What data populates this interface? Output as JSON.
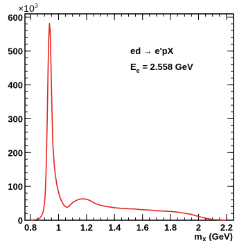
{
  "chart_data": {
    "type": "line",
    "title": "",
    "xlabel": "m",
    "xlabel_sub": "X",
    "xlabel_unit": " (GeV)",
    "ylabel": "",
    "y_multiplier": "×10",
    "y_multiplier_exp": "3",
    "xlim": [
      0.76,
      2.25
    ],
    "ylim": [
      0,
      610
    ],
    "x_ticks": [
      0.8,
      1.0,
      1.2,
      1.4,
      1.6,
      1.8,
      2.0,
      2.2
    ],
    "x_tick_labels": [
      "0.8",
      "1",
      "1.2",
      "1.4",
      "1.6",
      "1.8",
      "2",
      "2.2"
    ],
    "y_ticks": [
      0,
      100,
      200,
      300,
      400,
      500,
      600
    ],
    "y_tick_labels": [
      "0",
      "100",
      "200",
      "300",
      "400",
      "500",
      "600"
    ],
    "annotations": {
      "reaction_main": "ed",
      "reaction_arrow": "→",
      "reaction_tail": "e'pX",
      "energy_symbol": "E",
      "energy_sub": "e",
      "energy_value": "= 2.558 GeV"
    },
    "series": [
      {
        "color": "#e8231e",
        "x": [
          0.8,
          0.82,
          0.84,
          0.86,
          0.87,
          0.88,
          0.89,
          0.9,
          0.905,
          0.91,
          0.915,
          0.92,
          0.925,
          0.93,
          0.935,
          0.94,
          0.945,
          0.95,
          0.955,
          0.96,
          0.97,
          0.98,
          0.99,
          1.0,
          1.01,
          1.02,
          1.03,
          1.04,
          1.05,
          1.06,
          1.07,
          1.08,
          1.09,
          1.1,
          1.12,
          1.14,
          1.16,
          1.18,
          1.2,
          1.22,
          1.24,
          1.26,
          1.3,
          1.35,
          1.4,
          1.45,
          1.5,
          1.55,
          1.6,
          1.65,
          1.7,
          1.75,
          1.8,
          1.85,
          1.9,
          1.95,
          2.0,
          2.05,
          2.1,
          2.15,
          2.2
        ],
        "y": [
          0,
          1,
          2,
          5,
          8,
          14,
          25,
          50,
          80,
          130,
          210,
          320,
          440,
          540,
          582,
          560,
          480,
          380,
          290,
          220,
          160,
          125,
          100,
          82,
          68,
          58,
          50,
          44,
          40,
          38,
          40,
          44,
          48,
          52,
          57,
          61,
          63,
          63,
          62,
          59,
          55,
          50,
          44,
          40,
          37,
          35,
          34,
          33,
          31,
          30,
          28,
          27,
          26,
          24,
          21,
          17,
          11,
          6,
          2,
          1,
          0
        ]
      }
    ]
  }
}
